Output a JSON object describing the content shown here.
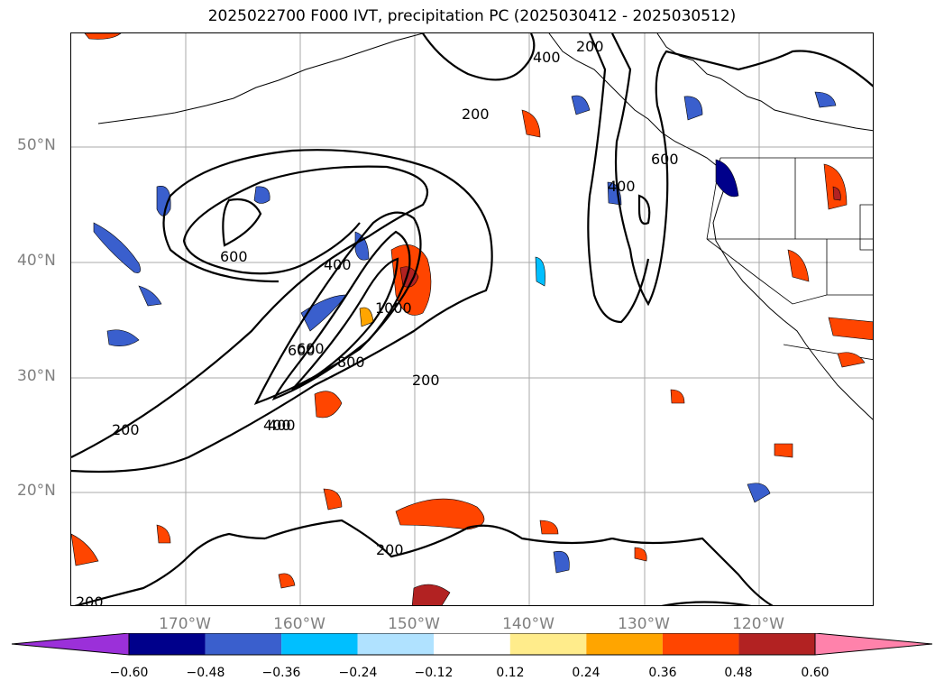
{
  "title": "2025022700 F000 IVT, precipitation PC (2025030412 - 2025030512)",
  "lat_labels": [
    "50°N",
    "40°N",
    "30°N",
    "20°N"
  ],
  "lon_labels": [
    "170°W",
    "160°W",
    "150°W",
    "140°W",
    "130°W",
    "120°W"
  ],
  "contour_labels": [
    "200",
    "400",
    "600",
    "400",
    "200",
    "600",
    "1000",
    "800",
    "600",
    "400",
    "200",
    "200",
    "200",
    "200",
    "400",
    "600",
    "400"
  ],
  "colorbar": {
    "ticks": [
      "−0.60",
      "−0.48",
      "−0.36",
      "−0.24",
      "−0.12",
      "0.12",
      "0.24",
      "0.36",
      "0.48",
      "0.60"
    ],
    "colors": [
      "#9b30d9",
      "#00008b",
      "#3a5fcd",
      "#00bfff",
      "#b0e2ff",
      "#ffffff",
      "#ffec8b",
      "#ffa500",
      "#ff4500",
      "#b22222",
      "#ff82ab"
    ]
  }
}
